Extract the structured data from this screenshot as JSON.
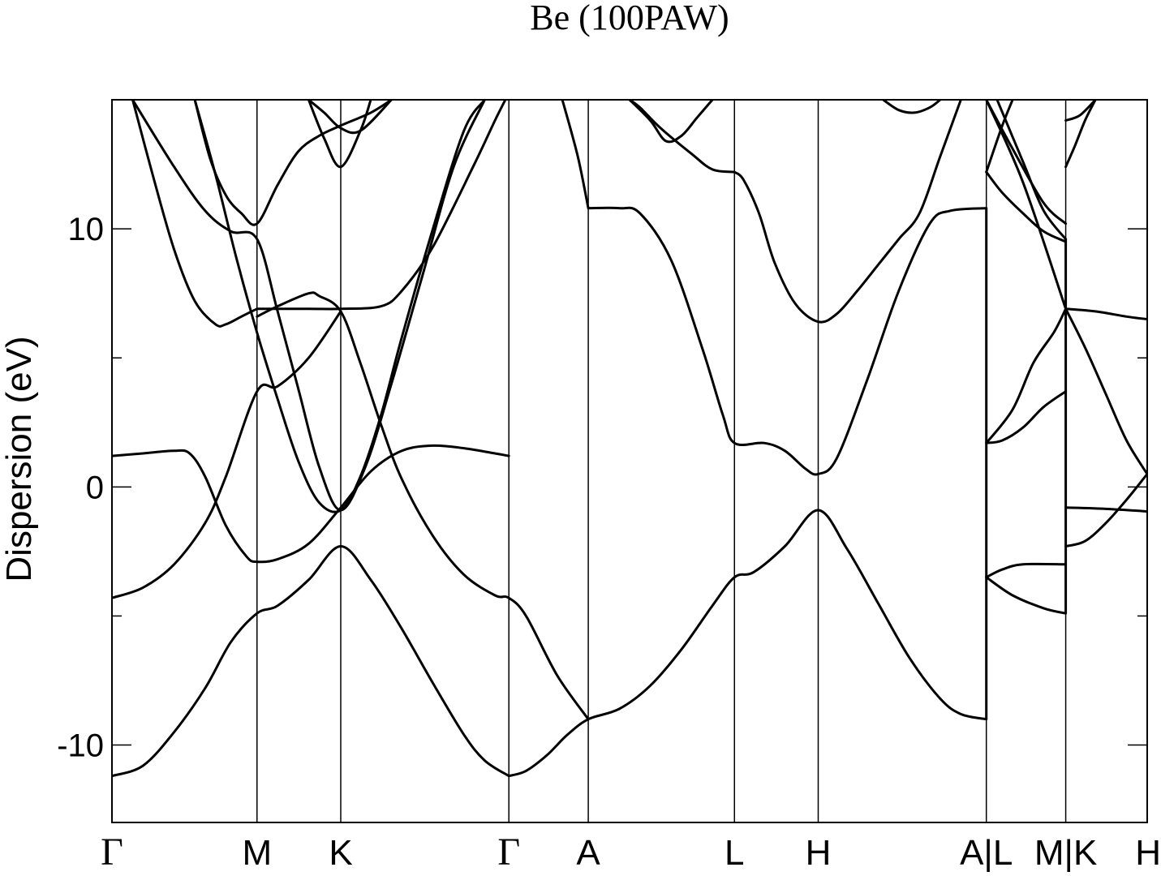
{
  "chart_data": {
    "type": "line",
    "title": "Be (100PAW)",
    "xlabel": "",
    "ylabel": "Dispersion (eV)",
    "ylim": [
      -13,
      15
    ],
    "yticks": [
      {
        "value": -10,
        "label": "-10"
      },
      {
        "value": 0,
        "label": "0"
      },
      {
        "value": 10,
        "label": "10"
      }
    ],
    "yminor_ticks": [
      -5,
      5
    ],
    "xlim": [
      0,
      1
    ],
    "xticks": [
      {
        "pos": 0.0,
        "label": "Γ"
      },
      {
        "pos": 0.1401,
        "label": "M"
      },
      {
        "pos": 0.221,
        "label": "K"
      },
      {
        "pos": 0.3834,
        "label": "Γ"
      },
      {
        "pos": 0.4601,
        "label": "A"
      },
      {
        "pos": 0.6013,
        "label": "L"
      },
      {
        "pos": 0.6822,
        "label": "H"
      },
      {
        "pos": 0.8446,
        "label": "A|L"
      },
      {
        "pos": 0.9213,
        "label": "M|K"
      },
      {
        "pos": 1.0,
        "label": "H"
      }
    ],
    "segment_labels": [
      "Γ-M",
      "M-K",
      "K-Γ",
      "Γ-A",
      "A-L",
      "L-H",
      "H-A",
      "L-M",
      "K-H"
    ],
    "series": [
      {
        "values": [
          [
            0,
            -11.2
          ],
          [
            0.03,
            -10.8
          ],
          [
            0.06,
            -9.5
          ],
          [
            0.09,
            -7.8
          ],
          [
            0.115,
            -6.0
          ],
          [
            0.1401,
            -4.9
          ],
          [
            0.16,
            -4.6
          ],
          [
            0.19,
            -3.6
          ],
          [
            0.221,
            -2.3
          ],
          [
            0.25,
            -3.6
          ],
          [
            0.28,
            -5.5
          ],
          [
            0.31,
            -7.6
          ],
          [
            0.34,
            -9.6
          ],
          [
            0.36,
            -10.6
          ],
          [
            0.3834,
            -11.2
          ]
        ]
      },
      {
        "values": [
          [
            0.3834,
            -11.2
          ],
          [
            0.4,
            -11.0
          ],
          [
            0.42,
            -10.4
          ],
          [
            0.44,
            -9.6
          ],
          [
            0.4601,
            -9.0
          ],
          [
            0.49,
            -8.6
          ],
          [
            0.52,
            -7.7
          ],
          [
            0.55,
            -6.3
          ],
          [
            0.58,
            -4.6
          ],
          [
            0.6013,
            -3.5
          ],
          [
            0.62,
            -3.3
          ],
          [
            0.65,
            -2.3
          ],
          [
            0.6822,
            -0.9
          ],
          [
            0.71,
            -2.4
          ],
          [
            0.74,
            -4.5
          ],
          [
            0.77,
            -6.6
          ],
          [
            0.8,
            -8.2
          ],
          [
            0.82,
            -8.8
          ],
          [
            0.8446,
            -9.0
          ]
        ]
      },
      {
        "values": [
          [
            0,
            -4.3
          ],
          [
            0.03,
            -3.9
          ],
          [
            0.06,
            -3.0
          ],
          [
            0.09,
            -1.4
          ],
          [
            0.11,
            0.4
          ],
          [
            0.1401,
            3.7
          ],
          [
            0.16,
            3.9
          ],
          [
            0.19,
            5.0
          ],
          [
            0.221,
            6.8
          ]
        ]
      },
      {
        "values": [
          [
            0,
            1.2
          ],
          [
            0.03,
            1.3
          ],
          [
            0.06,
            1.4
          ],
          [
            0.075,
            1.3
          ],
          [
            0.09,
            0.4
          ],
          [
            0.11,
            -1.5
          ],
          [
            0.13,
            -2.7
          ],
          [
            0.1401,
            -2.9
          ],
          [
            0.16,
            -2.8
          ],
          [
            0.19,
            -2.2
          ],
          [
            0.221,
            -0.8
          ],
          [
            0.25,
            0.6
          ],
          [
            0.28,
            1.4
          ],
          [
            0.31,
            1.6
          ],
          [
            0.34,
            1.5
          ],
          [
            0.37,
            1.3
          ],
          [
            0.3834,
            1.2
          ]
        ]
      },
      {
        "values": [
          [
            0.1401,
            6.6
          ],
          [
            0.16,
            7.0
          ],
          [
            0.19,
            7.5
          ],
          [
            0.2,
            7.4
          ],
          [
            0.221,
            6.8
          ],
          [
            0.24,
            4.8
          ],
          [
            0.26,
            2.4
          ],
          [
            0.28,
            0.3
          ],
          [
            0.31,
            -1.9
          ],
          [
            0.34,
            -3.4
          ],
          [
            0.37,
            -4.2
          ],
          [
            0.3834,
            -4.3
          ],
          [
            0.4,
            -5.0
          ],
          [
            0.43,
            -7.3
          ],
          [
            0.4601,
            -9.0
          ]
        ]
      },
      {
        "values": [
          [
            0.1401,
            6.9
          ],
          [
            0.19,
            6.9
          ],
          [
            0.221,
            6.9
          ],
          [
            0.26,
            7.0
          ],
          [
            0.28,
            7.6
          ],
          [
            0.31,
            9.3
          ],
          [
            0.35,
            12.5
          ],
          [
            0.37,
            14.2
          ],
          [
            0.38,
            15.0
          ]
        ]
      },
      {
        "values": [
          [
            0.02,
            15.0
          ],
          [
            0.04,
            12.0
          ],
          [
            0.06,
            9.2
          ],
          [
            0.08,
            7.2
          ],
          [
            0.1,
            6.3
          ],
          [
            0.11,
            6.3
          ],
          [
            0.125,
            6.6
          ],
          [
            0.1401,
            6.9
          ]
        ]
      },
      {
        "values": [
          [
            0.02,
            15.0
          ],
          [
            0.06,
            12.4
          ],
          [
            0.09,
            10.7
          ],
          [
            0.115,
            9.9
          ],
          [
            0.1401,
            9.6
          ],
          [
            0.16,
            6.8
          ],
          [
            0.18,
            3.8
          ],
          [
            0.2,
            0.8
          ],
          [
            0.221,
            -0.9
          ],
          [
            0.245,
            0.8
          ],
          [
            0.27,
            4.0
          ],
          [
            0.3,
            8.2
          ],
          [
            0.33,
            12.4
          ],
          [
            0.36,
            15.0
          ]
        ]
      },
      {
        "values": [
          [
            0.08,
            15.0
          ],
          [
            0.095,
            12.7
          ],
          [
            0.11,
            11.3
          ],
          [
            0.125,
            10.6
          ],
          [
            0.1401,
            10.2
          ],
          [
            0.16,
            11.7
          ],
          [
            0.18,
            13.0
          ],
          [
            0.2,
            13.6
          ],
          [
            0.221,
            14.0
          ],
          [
            0.25,
            14.5
          ],
          [
            0.27,
            15.0
          ]
        ]
      },
      {
        "values": [
          [
            0.08,
            15.0
          ],
          [
            0.1,
            12.1
          ],
          [
            0.12,
            8.9
          ],
          [
            0.14,
            6.0
          ],
          [
            0.16,
            3.4
          ],
          [
            0.18,
            1.0
          ],
          [
            0.2,
            -0.6
          ],
          [
            0.221,
            -0.9
          ],
          [
            0.24,
            0.4
          ],
          [
            0.26,
            2.8
          ],
          [
            0.28,
            5.8
          ],
          [
            0.31,
            10.0
          ],
          [
            0.34,
            13.8
          ],
          [
            0.36,
            15.0
          ]
        ]
      },
      {
        "values": [
          [
            0.19,
            15.0
          ],
          [
            0.205,
            13.5
          ],
          [
            0.221,
            12.4
          ],
          [
            0.24,
            13.8
          ],
          [
            0.25,
            15.0
          ]
        ]
      },
      {
        "values": [
          [
            0.19,
            15.0
          ],
          [
            0.205,
            14.5
          ],
          [
            0.221,
            13.9
          ],
          [
            0.24,
            13.8
          ],
          [
            0.27,
            15.0
          ]
        ]
      },
      {
        "values": [
          [
            0.4601,
            10.8
          ],
          [
            0.45,
            12.8
          ],
          [
            0.435,
            15.0
          ]
        ]
      },
      {
        "values": [
          [
            0.4601,
            10.8
          ],
          [
            0.49,
            10.8
          ],
          [
            0.51,
            10.6
          ],
          [
            0.54,
            8.8
          ],
          [
            0.57,
            5.4
          ],
          [
            0.59,
            2.8
          ],
          [
            0.6013,
            1.7
          ],
          [
            0.63,
            1.7
          ],
          [
            0.65,
            1.4
          ],
          [
            0.67,
            0.7
          ],
          [
            0.6822,
            0.5
          ],
          [
            0.7,
            1.1
          ],
          [
            0.73,
            4.2
          ],
          [
            0.76,
            7.6
          ],
          [
            0.79,
            10.2
          ],
          [
            0.81,
            10.7
          ],
          [
            0.8446,
            10.8
          ]
        ]
      },
      {
        "values": [
          [
            0.6013,
            12.2
          ],
          [
            0.61,
            11.9
          ],
          [
            0.625,
            10.6
          ],
          [
            0.64,
            8.7
          ],
          [
            0.66,
            7.1
          ],
          [
            0.6822,
            6.4
          ],
          [
            0.7,
            6.7
          ],
          [
            0.72,
            7.6
          ],
          [
            0.74,
            8.6
          ],
          [
            0.76,
            9.6
          ],
          [
            0.78,
            10.6
          ],
          [
            0.8,
            12.8
          ],
          [
            0.82,
            15.0
          ]
        ]
      },
      {
        "values": [
          [
            0.6013,
            12.2
          ],
          [
            0.58,
            12.3
          ],
          [
            0.56,
            12.9
          ],
          [
            0.53,
            13.9
          ],
          [
            0.51,
            14.7
          ],
          [
            0.5,
            15.0
          ]
        ]
      },
      {
        "values": [
          [
            0.5,
            15.0
          ],
          [
            0.52,
            14.2
          ],
          [
            0.535,
            13.4
          ],
          [
            0.55,
            13.6
          ],
          [
            0.565,
            14.3
          ],
          [
            0.58,
            15.0
          ]
        ]
      },
      {
        "values": [
          [
            0.745,
            15.0
          ],
          [
            0.76,
            14.6
          ],
          [
            0.775,
            14.5
          ],
          [
            0.79,
            14.7
          ],
          [
            0.8,
            15.0
          ]
        ]
      },
      {
        "values": [
          [
            0.8446,
            1.7
          ],
          [
            0.86,
            1.8
          ],
          [
            0.88,
            2.3
          ],
          [
            0.9,
            3.1
          ],
          [
            0.9213,
            3.7
          ]
        ]
      },
      {
        "values": [
          [
            0.8446,
            1.7
          ],
          [
            0.87,
            3.0
          ],
          [
            0.89,
            4.8
          ],
          [
            0.91,
            6.0
          ],
          [
            0.9213,
            6.9
          ]
        ]
      },
      {
        "values": [
          [
            0.8446,
            -3.5
          ],
          [
            0.86,
            -3.2
          ],
          [
            0.88,
            -3.0
          ],
          [
            0.9213,
            -3.0
          ]
        ]
      },
      {
        "values": [
          [
            0.8446,
            -3.5
          ],
          [
            0.87,
            -4.2
          ],
          [
            0.9,
            -4.7
          ],
          [
            0.9213,
            -4.9
          ]
        ]
      },
      {
        "values": [
          [
            0.8446,
            12.2
          ],
          [
            0.86,
            14.0
          ],
          [
            0.87,
            15.0
          ]
        ]
      },
      {
        "values": [
          [
            0.8446,
            12.2
          ],
          [
            0.86,
            11.4
          ],
          [
            0.88,
            10.6
          ],
          [
            0.9,
            9.9
          ],
          [
            0.9213,
            9.5
          ]
        ]
      },
      {
        "values": [
          [
            0.8446,
            15.0
          ],
          [
            0.88,
            11.8
          ],
          [
            0.9213,
            6.9
          ]
        ]
      },
      {
        "values": [
          [
            0.8446,
            15.0
          ],
          [
            0.87,
            13.1
          ],
          [
            0.9,
            11.0
          ],
          [
            0.9213,
            10.2
          ]
        ]
      },
      {
        "values": [
          [
            0.855,
            15.0
          ],
          [
            0.88,
            12.6
          ],
          [
            0.9,
            10.7
          ],
          [
            0.9213,
            9.6
          ]
        ]
      },
      {
        "values": [
          [
            0.9213,
            6.9
          ],
          [
            0.95,
            6.8
          ],
          [
            0.98,
            6.6
          ],
          [
            1.0,
            6.5
          ]
        ]
      },
      {
        "values": [
          [
            0.9213,
            6.9
          ],
          [
            0.94,
            5.4
          ],
          [
            0.96,
            3.6
          ],
          [
            0.98,
            1.8
          ],
          [
            1.0,
            0.5
          ]
        ]
      },
      {
        "values": [
          [
            0.9213,
            -2.3
          ],
          [
            0.94,
            -2.1
          ],
          [
            0.96,
            -1.4
          ],
          [
            0.98,
            -0.5
          ],
          [
            1.0,
            0.5
          ]
        ]
      },
      {
        "values": [
          [
            0.9213,
            -0.8
          ],
          [
            0.96,
            -0.85
          ],
          [
            1.0,
            -0.95
          ]
        ]
      },
      {
        "values": [
          [
            0.9213,
            12.4
          ],
          [
            0.93,
            13.2
          ],
          [
            0.94,
            14.2
          ],
          [
            0.95,
            15.0
          ]
        ]
      },
      {
        "values": [
          [
            0.9213,
            14.2
          ],
          [
            0.935,
            14.4
          ],
          [
            0.95,
            15.0
          ]
        ]
      }
    ],
    "grid": false,
    "legend": "none"
  }
}
